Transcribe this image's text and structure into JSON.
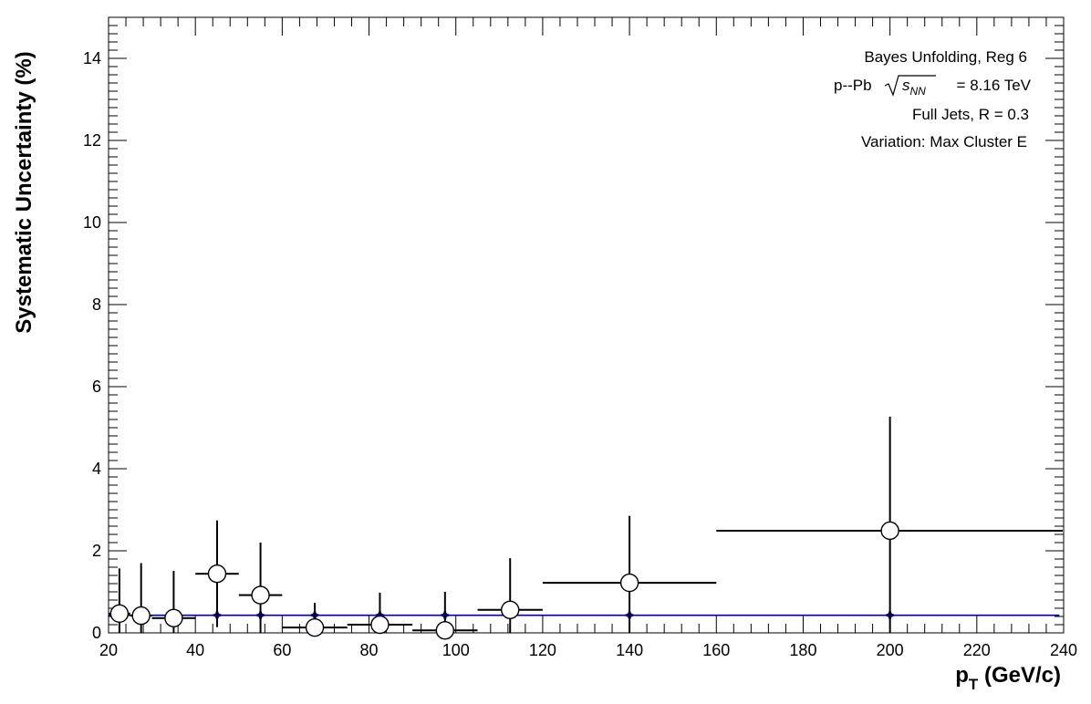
{
  "chart_data": {
    "type": "scatter",
    "xlabel": "p",
    "xlabel_sub": "T",
    "xlabel_unit": "(GeV/c)",
    "ylabel": "Systematic Uncertainty (%)",
    "xlim": [
      20,
      240
    ],
    "ylim": [
      0,
      15
    ],
    "x_ticks": [
      20,
      40,
      60,
      80,
      100,
      120,
      140,
      160,
      180,
      200,
      220,
      240
    ],
    "y_ticks": [
      0,
      2,
      4,
      6,
      8,
      10,
      12,
      14
    ],
    "annotations": {
      "line1": "Bayes Unfolding, Reg 6",
      "line2_prefix": "p--Pb",
      "line2_sqrt_s": "s",
      "line2_sub": "NN",
      "line2_suffix": "= 8.16 TeV",
      "line3": "Full Jets, R = 0.3",
      "line4": "Variation: Max Cluster E"
    },
    "series": [
      {
        "marker": "open-circle",
        "color": "#000000",
        "points": [
          {
            "x": 22.5,
            "xlo": 20,
            "xhi": 25,
            "y": 0.47,
            "yerr": 1.1
          },
          {
            "x": 27.5,
            "xlo": 25,
            "xhi": 30,
            "y": 0.42,
            "yerr": 1.28
          },
          {
            "x": 35,
            "xlo": 30,
            "xhi": 40,
            "y": 0.36,
            "yerr": 1.15
          },
          {
            "x": 45,
            "xlo": 40,
            "xhi": 50,
            "y": 1.44,
            "yerr": 1.3
          },
          {
            "x": 55,
            "xlo": 50,
            "xhi": 60,
            "y": 0.92,
            "yerr": 1.28
          },
          {
            "x": 67.5,
            "xlo": 60,
            "xhi": 75,
            "y": 0.13,
            "yerr": 0.6
          },
          {
            "x": 82.5,
            "xlo": 75,
            "xhi": 90,
            "y": 0.2,
            "yerr": 0.78
          },
          {
            "x": 97.5,
            "xlo": 90,
            "xhi": 105,
            "y": 0.06,
            "yerr": 0.94
          },
          {
            "x": 112.5,
            "xlo": 105,
            "xhi": 120,
            "y": 0.56,
            "yerr": 1.26
          },
          {
            "x": 140,
            "xlo": 120,
            "xhi": 160,
            "y": 1.22,
            "yerr": 1.63
          },
          {
            "x": 200,
            "xlo": 160,
            "xhi": 240,
            "y": 2.49,
            "yerr": 2.78
          }
        ]
      },
      {
        "marker": "filled-star",
        "color": "#00008b",
        "line": true,
        "points": [
          {
            "x": 22.5,
            "y": 0.43,
            "yerr": 0.12
          },
          {
            "x": 27.5,
            "y": 0.43,
            "yerr": 0.12
          },
          {
            "x": 35,
            "y": 0.43,
            "yerr": 0.12
          },
          {
            "x": 45,
            "y": 0.43,
            "yerr": 0.12
          },
          {
            "x": 55,
            "y": 0.43,
            "yerr": 0.12
          },
          {
            "x": 67.5,
            "y": 0.43,
            "yerr": 0.12
          },
          {
            "x": 82.5,
            "y": 0.43,
            "yerr": 0.12
          },
          {
            "x": 97.5,
            "y": 0.43,
            "yerr": 0.12
          },
          {
            "x": 112.5,
            "y": 0.43,
            "yerr": 0.12
          },
          {
            "x": 140,
            "y": 0.43,
            "yerr": 0.12
          },
          {
            "x": 200,
            "y": 0.43,
            "yerr": 0.12
          }
        ],
        "line_xrange": [
          20,
          239
        ]
      }
    ],
    "grid": false,
    "legend": "top-right"
  }
}
